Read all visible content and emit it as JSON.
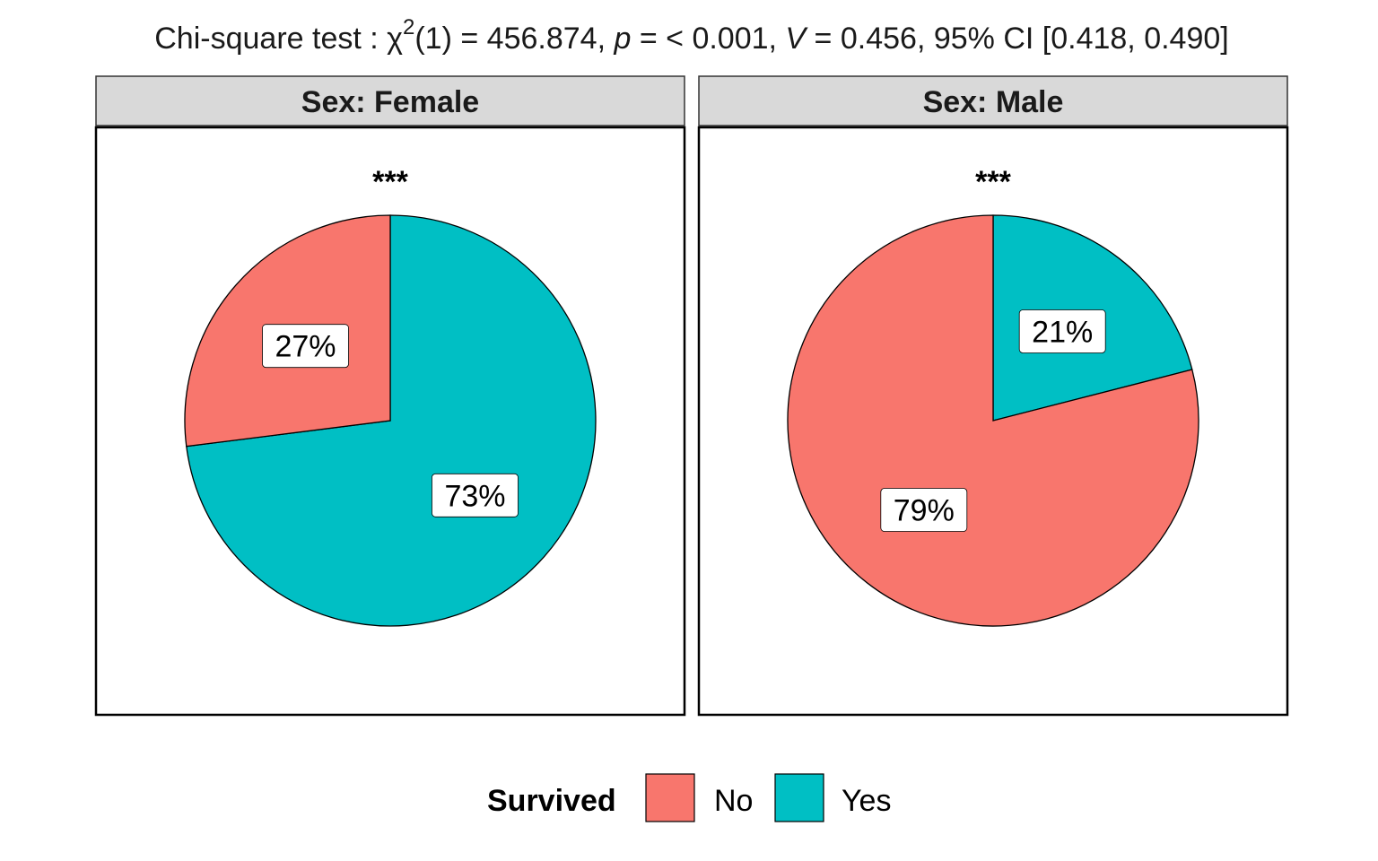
{
  "chart_data": {
    "type": "pie",
    "title": {
      "prefix": "Chi-square test : ",
      "chi_symbol": "χ",
      "chi_superscript": "2",
      "df": "(1) = 456.874, ",
      "p_symbol": "p",
      "p_value": " = < 0.001, ",
      "v_symbol": "V",
      "v_value": " = 0.456, 95% CI [0.418, 0.490]"
    },
    "legend": {
      "title": "Survived",
      "placement": "bottom",
      "entries": [
        {
          "label": "No",
          "color": "#F8766D"
        },
        {
          "label": "Yes",
          "color": "#00BFC4"
        }
      ]
    },
    "panels": [
      {
        "strip": "Sex: Female",
        "significance": "***",
        "slices": [
          {
            "category": "No",
            "value": 27,
            "label": "27%",
            "color": "#F8766D"
          },
          {
            "category": "Yes",
            "value": 73,
            "label": "73%",
            "color": "#00BFC4"
          }
        ]
      },
      {
        "strip": "Sex: Male",
        "significance": "***",
        "slices": [
          {
            "category": "No",
            "value": 79,
            "label": "79%",
            "color": "#F8766D"
          },
          {
            "category": "Yes",
            "value": 21,
            "label": "21%",
            "color": "#00BFC4"
          }
        ]
      }
    ]
  }
}
